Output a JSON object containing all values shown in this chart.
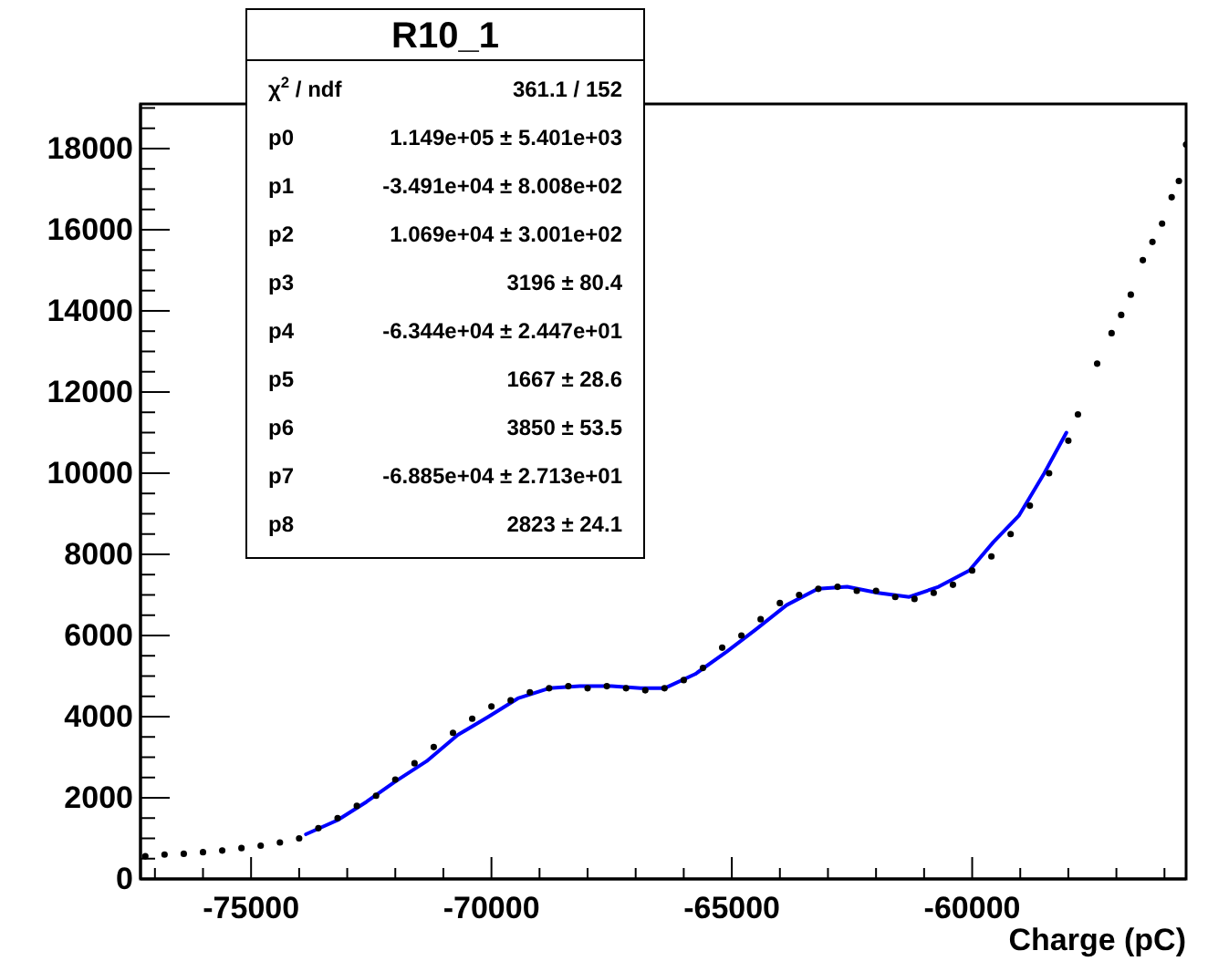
{
  "chart_data": {
    "type": "scatter",
    "title": "R10_1",
    "xlabel": "Charge (pC)",
    "annotations": [
      "χ$^{2}$ / ndf",
      "361.1 / 152",
      "p0",
      "1.149e+05 ± 5.401e+03",
      "p1",
      "-3.491e+04 ± 8.008e+02",
      "p2",
      "1.069e+04 ± 3.001e+02",
      "p3",
      "3196 ± 80.4",
      "p4",
      "-6.344e+04 ± 2.447e+01",
      "p5",
      "1667 ± 28.6",
      "p6",
      "3850 ± 53.5",
      "p7",
      "-6.885e+04 ± 2.713e+01",
      "p8",
      "2823 ± 24.1"
    ],
    "xlim": [
      -77300,
      -55550
    ],
    "ylim": [
      0,
      19100
    ],
    "marker": "circle",
    "grid": false,
    "xticks": [
      {
        "value": -77000,
        "label": null
      },
      {
        "value": -76000,
        "label": null
      },
      -75000,
      {
        "value": -74000,
        "label": null
      },
      {
        "value": -73000,
        "label": null
      },
      {
        "value": -72000,
        "label": null
      },
      {
        "value": -71000,
        "label": null
      },
      -70000,
      {
        "value": -69000,
        "label": null
      },
      {
        "value": -68000,
        "label": null
      },
      {
        "value": -67000,
        "label": null
      },
      {
        "value": -66000,
        "label": null
      },
      -65000,
      {
        "value": -64000,
        "label": null
      },
      {
        "value": -63000,
        "label": null
      },
      {
        "value": -62000,
        "label": null
      },
      {
        "value": -61000,
        "label": null
      },
      -60000,
      {
        "value": -59000,
        "label": null
      },
      {
        "value": -58000,
        "label": null
      },
      {
        "value": -57000,
        "label": null
      },
      {
        "value": -56000,
        "label": null
      }
    ],
    "yticks": [
      0,
      {
        "value": 500,
        "label": null
      },
      {
        "value": 1000,
        "label": null
      },
      {
        "value": 1500,
        "label": null
      },
      2000,
      {
        "value": 2500,
        "label": null
      },
      {
        "value": 3000,
        "label": null
      },
      {
        "value": 3500,
        "label": null
      },
      4000,
      {
        "value": 4500,
        "label": null
      },
      {
        "value": 5000,
        "label": null
      },
      {
        "value": 5500,
        "label": null
      },
      6000,
      {
        "value": 6500,
        "label": null
      },
      {
        "value": 7000,
        "label": null
      },
      {
        "value": 7500,
        "label": null
      },
      8000,
      {
        "value": 8500,
        "label": null
      },
      {
        "value": 9000,
        "label": null
      },
      {
        "value": 9500,
        "label": null
      },
      10000,
      {
        "value": 10500,
        "label": null
      },
      {
        "value": 11000,
        "label": null
      },
      {
        "value": 11500,
        "label": null
      },
      12000,
      {
        "value": 12500,
        "label": null
      },
      {
        "value": 13000,
        "label": null
      },
      {
        "value": 13500,
        "label": null
      },
      14000,
      {
        "value": 14500,
        "label": null
      },
      {
        "value": 15000,
        "label": null
      },
      {
        "value": 15500,
        "label": null
      },
      16000,
      {
        "value": 16500,
        "label": null
      },
      {
        "value": 17000,
        "label": null
      },
      {
        "value": 17500,
        "label": null
      },
      18000,
      {
        "value": 18500,
        "label": null
      },
      {
        "value": 19000,
        "label": null
      }
    ],
    "series": [
      {
        "color": "#000000",
        "x": [
          -77200,
          -76800,
          -76400,
          -76000,
          -75600,
          -75200,
          -74800,
          -74400,
          -74000,
          -73600,
          -73200,
          -72800,
          -72400,
          -72000,
          -71600,
          -71200,
          -70800,
          -70400,
          -70000,
          -69600,
          -69200,
          -68800,
          -68400,
          -68000,
          -67600,
          -67200,
          -66800,
          -66400,
          -66000,
          -65600,
          -65200,
          -64800,
          -64400,
          -64000,
          -63600,
          -63200,
          -62800,
          -62400,
          -62000,
          -61600,
          -61200,
          -60800,
          -60400,
          -60000,
          -59600,
          -59200,
          -58800,
          -58400,
          -58000,
          -57800,
          -57400,
          -57100,
          -56900,
          -56700,
          -56450,
          -56250,
          -56050,
          -55850,
          -55700,
          -55550
        ],
        "values": [
          560,
          600,
          620,
          660,
          700,
          760,
          820,
          900,
          1000,
          1250,
          1500,
          1800,
          2050,
          2450,
          2850,
          3250,
          3600,
          3950,
          4250,
          4400,
          4600,
          4700,
          4750,
          4700,
          4750,
          4700,
          4650,
          4700,
          4900,
          5200,
          5700,
          6000,
          6400,
          6800,
          7000,
          7150,
          7200,
          7100,
          7100,
          6950,
          6900,
          7050,
          7250,
          7600,
          7950,
          8500,
          9200,
          10000,
          10800,
          11450,
          12700,
          13450,
          13900,
          14400,
          15250,
          15700,
          16150,
          16800,
          17200,
          18100
        ]
      },
      {
        "type": "line",
        "color": "#0000ff",
        "marker": "none",
        "x": [
          -73860,
          -73200,
          -72600,
          -72000,
          -71350,
          -70700,
          -70060,
          -69450,
          -68800,
          -68160,
          -67500,
          -66900,
          -66400,
          -65760,
          -65110,
          -64500,
          -63860,
          -63210,
          -62600,
          -61960,
          -61310,
          -60700,
          -60060,
          -59560,
          -59030,
          -58500,
          -58040
        ],
        "values": [
          1100,
          1450,
          1900,
          2400,
          2900,
          3550,
          4000,
          4450,
          4700,
          4750,
          4750,
          4700,
          4700,
          5050,
          5600,
          6150,
          6750,
          7150,
          7200,
          7050,
          6950,
          7200,
          7600,
          8300,
          8950,
          10000,
          11000
        ]
      }
    ]
  }
}
